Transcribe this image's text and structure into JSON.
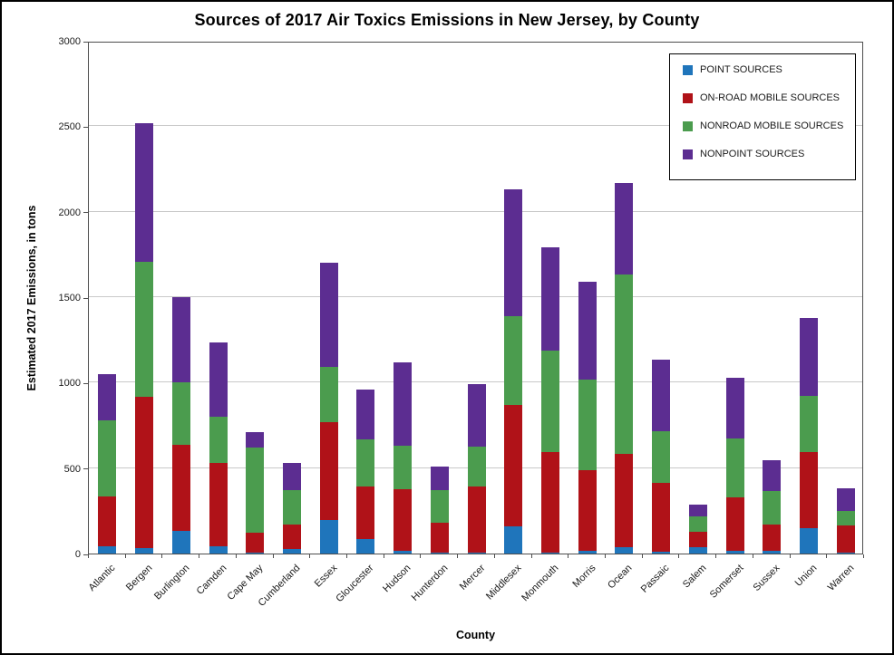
{
  "title": "Sources of 2017 Air Toxics Emissions in New Jersey, by County",
  "chart_data": {
    "type": "bar",
    "subtype": "stacked-vertical",
    "title": "Sources of 2017 Air Toxics Emissions in New Jersey, by County",
    "xlabel": "County",
    "ylabel": "Estimated 2017 Emissions, in tons",
    "ylim": [
      0,
      3000
    ],
    "ytick_interval": 500,
    "ytick_labels": [
      "0",
      "500",
      "1000",
      "1500",
      "2000",
      "2500",
      "3000"
    ],
    "grid": true,
    "legend_position": "top-right",
    "categories": [
      "Atlantic",
      "Bergen",
      "Burlington",
      "Camden",
      "Cape May",
      "Cumberland",
      "Essex",
      "Gloucester",
      "Hudson",
      "Hunterdon",
      "Mercer",
      "Middlesex",
      "Monmouth",
      "Morris",
      "Ocean",
      "Passaic",
      "Salem",
      "Somerset",
      "Sussex",
      "Union",
      "Warren"
    ],
    "series": [
      {
        "name": "POINT SOURCES",
        "color": "#1f75bb",
        "values": [
          40,
          30,
          130,
          45,
          5,
          25,
          195,
          85,
          18,
          4,
          5,
          160,
          8,
          15,
          35,
          10,
          35,
          15,
          15,
          150,
          6
        ]
      },
      {
        "name": "ON-ROAD MOBILE SOURCES",
        "color": "#b01218",
        "values": [
          295,
          885,
          505,
          485,
          115,
          145,
          575,
          305,
          357,
          176,
          385,
          710,
          587,
          475,
          550,
          405,
          93,
          315,
          155,
          445,
          160
        ]
      },
      {
        "name": "NONROAD MOBILE SOURCES",
        "color": "#4b9c4e",
        "values": [
          445,
          790,
          365,
          270,
          500,
          200,
          320,
          280,
          255,
          190,
          235,
          520,
          595,
          530,
          1045,
          300,
          87,
          345,
          195,
          325,
          84
        ]
      },
      {
        "name": "NONPOINT SOURCES",
        "color": "#5c2d91",
        "values": [
          270,
          815,
          500,
          435,
          90,
          160,
          610,
          290,
          490,
          140,
          365,
          740,
          600,
          570,
          540,
          420,
          70,
          355,
          180,
          460,
          130
        ]
      }
    ]
  }
}
